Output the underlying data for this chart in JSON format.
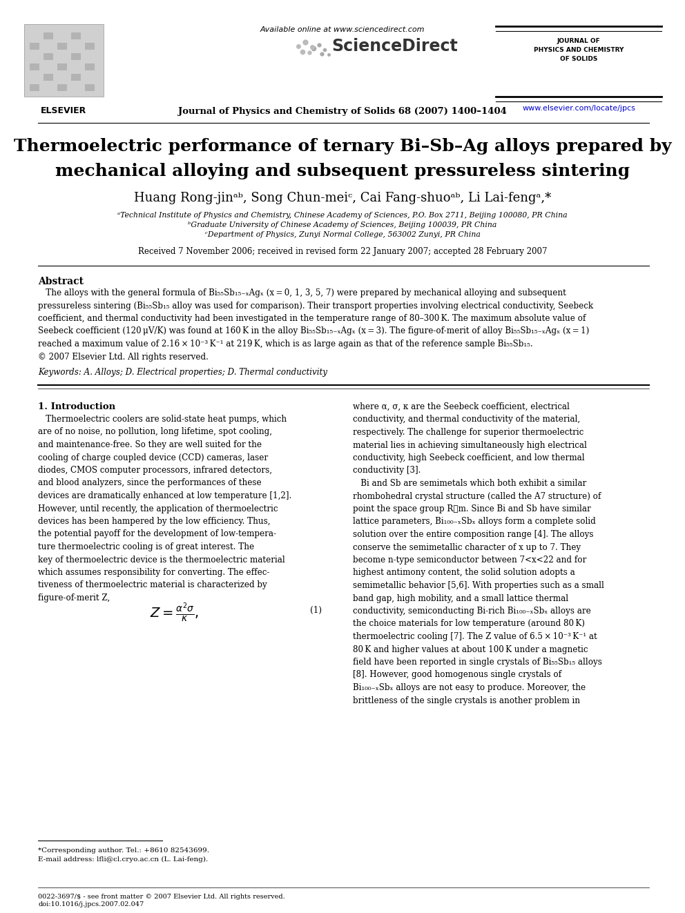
{
  "title_line1": "Thermoelectric performance of ternary Bi–Sb–Ag alloys prepared by",
  "title_line2": "mechanical alloying and subsequent pressureless sintering",
  "authors": "Huang Rong-jinᵃᵇ, Song Chun-meiᶜ, Cai Fang-shuoᵃᵇ, Li Lai-fengᵃ,*",
  "affil_a": "ᵃTechnical Institute of Physics and Chemistry, Chinese Academy of Sciences, P.O. Box 2711, Beijing 100080, PR China",
  "affil_b": "ᵇGraduate University of Chinese Academy of Sciences, Beijing 100039, PR China",
  "affil_c": "ᶜDepartment of Physics, Zunyi Normal College, 563002 Zunyi, PR China",
  "received": "Received 7 November 2006; received in revised form 22 January 2007; accepted 28 February 2007",
  "journal_header": "Journal of Physics and Chemistry of Solids 68 (2007) 1400–1404",
  "available_online": "Available online at www.sciencedirect.com",
  "journal_name_right": "JOURNAL OF\nPHYSICS AND CHEMISTRY\nOF SOLIDS",
  "url_right": "www.elsevier.com/locate/jpcs",
  "abstract_title": "Abstract",
  "keywords": "Keywords: A. Alloys; D. Electrical properties; D. Thermal conductivity",
  "section1_title": "1. Introduction",
  "footnote1": "*Corresponding author. Tel.: +8610 82543699.",
  "footnote2": "E-mail address: lfli@cl.cryo.ac.cn (L. Lai-feng).",
  "footer1": "0022-3697/$ - see front matter © 2007 Elsevier Ltd. All rights reserved.",
  "footer2": "doi:10.1016/j.jpcs.2007.02.047",
  "bg_color": "#ffffff",
  "text_color": "#000000",
  "link_color": "#0000cc"
}
